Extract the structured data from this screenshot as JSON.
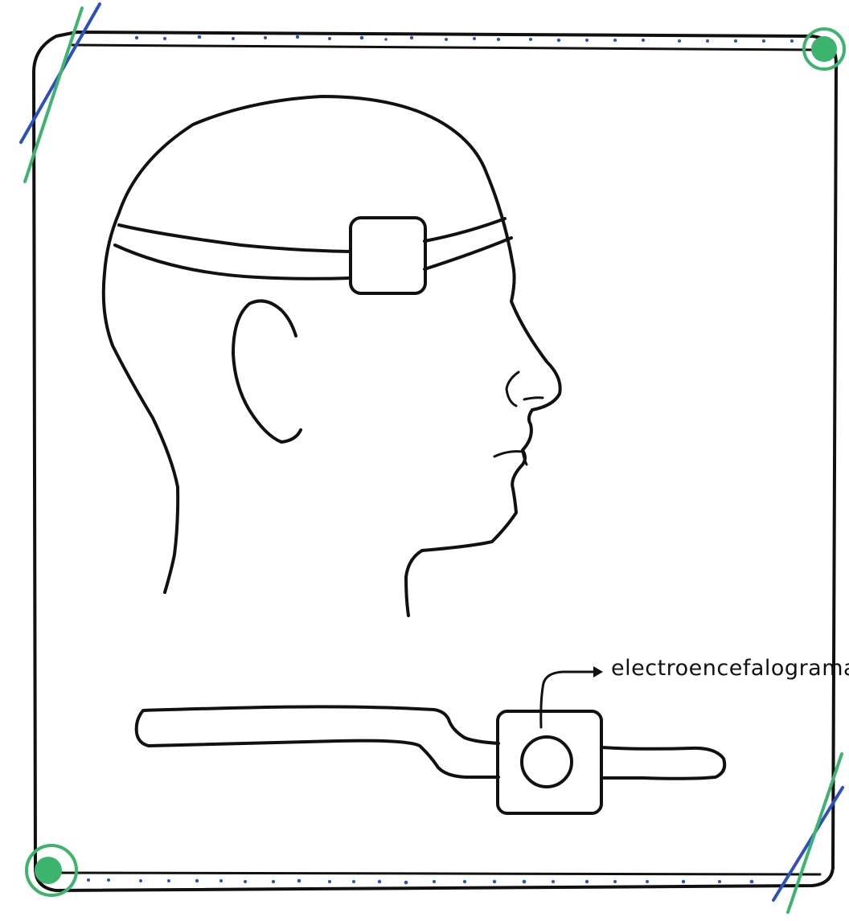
{
  "annotation": {
    "label": "electroencefalograma"
  },
  "colors": {
    "ink": "#111111",
    "frame_blue": "#2e4fbf",
    "frame_green": "#3cb46e"
  },
  "icons": {
    "corner_pin": "corner-pin-icon",
    "corner_tape": "tape-icon",
    "sensor": "eeg-sensor-icon"
  }
}
